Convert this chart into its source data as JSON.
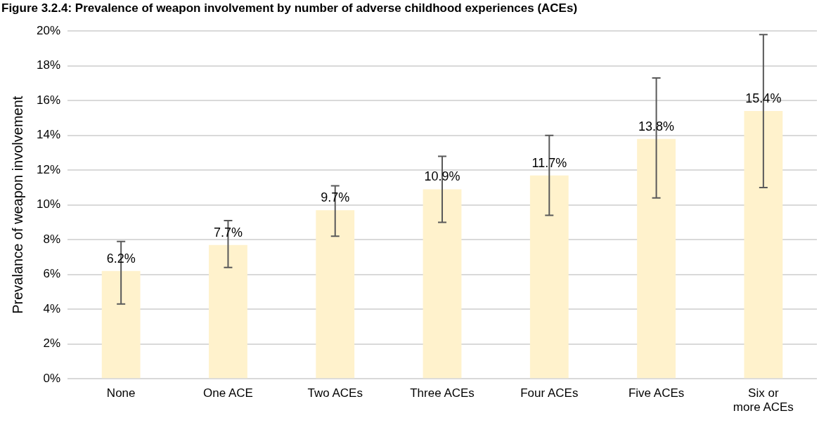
{
  "chart_data": {
    "type": "bar",
    "title": "Figure 3.2.4: Prevalence of weapon involvement by number of adverse childhood experiences (ACEs)",
    "ylabel": "Prevalance of weapon involvement",
    "categories": [
      "None",
      "One ACE",
      "Two ACEs",
      "Three ACEs",
      "Four ACEs",
      "Five ACEs",
      "Six or more ACEs"
    ],
    "values": [
      6.2,
      7.7,
      9.7,
      10.9,
      11.7,
      13.8,
      15.4
    ],
    "errors": [
      [
        4.3,
        7.9
      ],
      [
        6.4,
        9.1
      ],
      [
        8.2,
        11.1
      ],
      [
        9.0,
        12.8
      ],
      [
        9.4,
        14.0
      ],
      [
        10.4,
        17.3
      ],
      [
        11.0,
        19.8
      ]
    ],
    "value_labels": [
      "6.2%",
      "7.7%",
      "9.7%",
      "10.9%",
      "11.7%",
      "13.8%",
      "15.4%"
    ],
    "color": "#fff2cc",
    "ylim": [
      0,
      20
    ],
    "yticks": [
      {
        "value": 0,
        "label": "0%"
      },
      {
        "value": 2,
        "label": "2%"
      },
      {
        "value": 4,
        "label": "4%"
      },
      {
        "value": 6,
        "label": "6%"
      },
      {
        "value": 8,
        "label": "8%"
      },
      {
        "value": 10,
        "label": "10%"
      },
      {
        "value": 12,
        "label": "12%"
      },
      {
        "value": 14,
        "label": "14%"
      },
      {
        "value": 16,
        "label": "16%"
      },
      {
        "value": 18,
        "label": "18%"
      },
      {
        "value": 20,
        "label": "20%"
      }
    ],
    "grid": "y"
  }
}
